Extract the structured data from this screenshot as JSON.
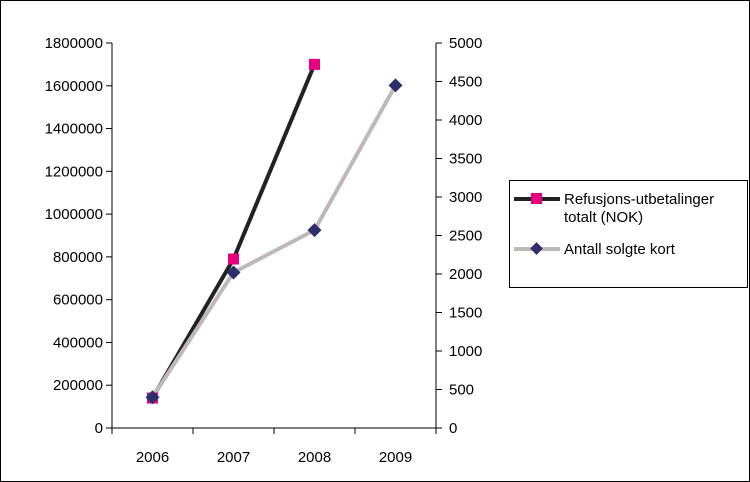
{
  "chart_data": {
    "type": "line",
    "title": "",
    "xlabel": "",
    "categories": [
      "2006",
      "2007",
      "2008",
      "2009"
    ],
    "y_left": {
      "ylim": [
        0,
        1800000
      ],
      "ticks": [
        "0",
        "200000",
        "400000",
        "600000",
        "800000",
        "1000000",
        "1200000",
        "1400000",
        "1600000",
        "1800000"
      ]
    },
    "y_right": {
      "ylim": [
        0,
        5000
      ],
      "ticks": [
        "0",
        "500",
        "1000",
        "1500",
        "2000",
        "2500",
        "3000",
        "3500",
        "4000",
        "4500",
        "5000"
      ]
    },
    "series": [
      {
        "name": "Refusjons-utbetalinger totalt (NOK)",
        "axis": "left",
        "marker": "square",
        "line_color": "#222222",
        "marker_color": "#e6007e",
        "values": [
          140000,
          790000,
          1700000,
          null
        ]
      },
      {
        "name": "Antall solgte kort",
        "axis": "right",
        "marker": "diamond",
        "line_color": "#c0b8b6",
        "marker_color": "#2b2f6b",
        "values": [
          400,
          2020,
          2570,
          4450
        ]
      }
    ],
    "legend_position": "right",
    "grid": false
  }
}
